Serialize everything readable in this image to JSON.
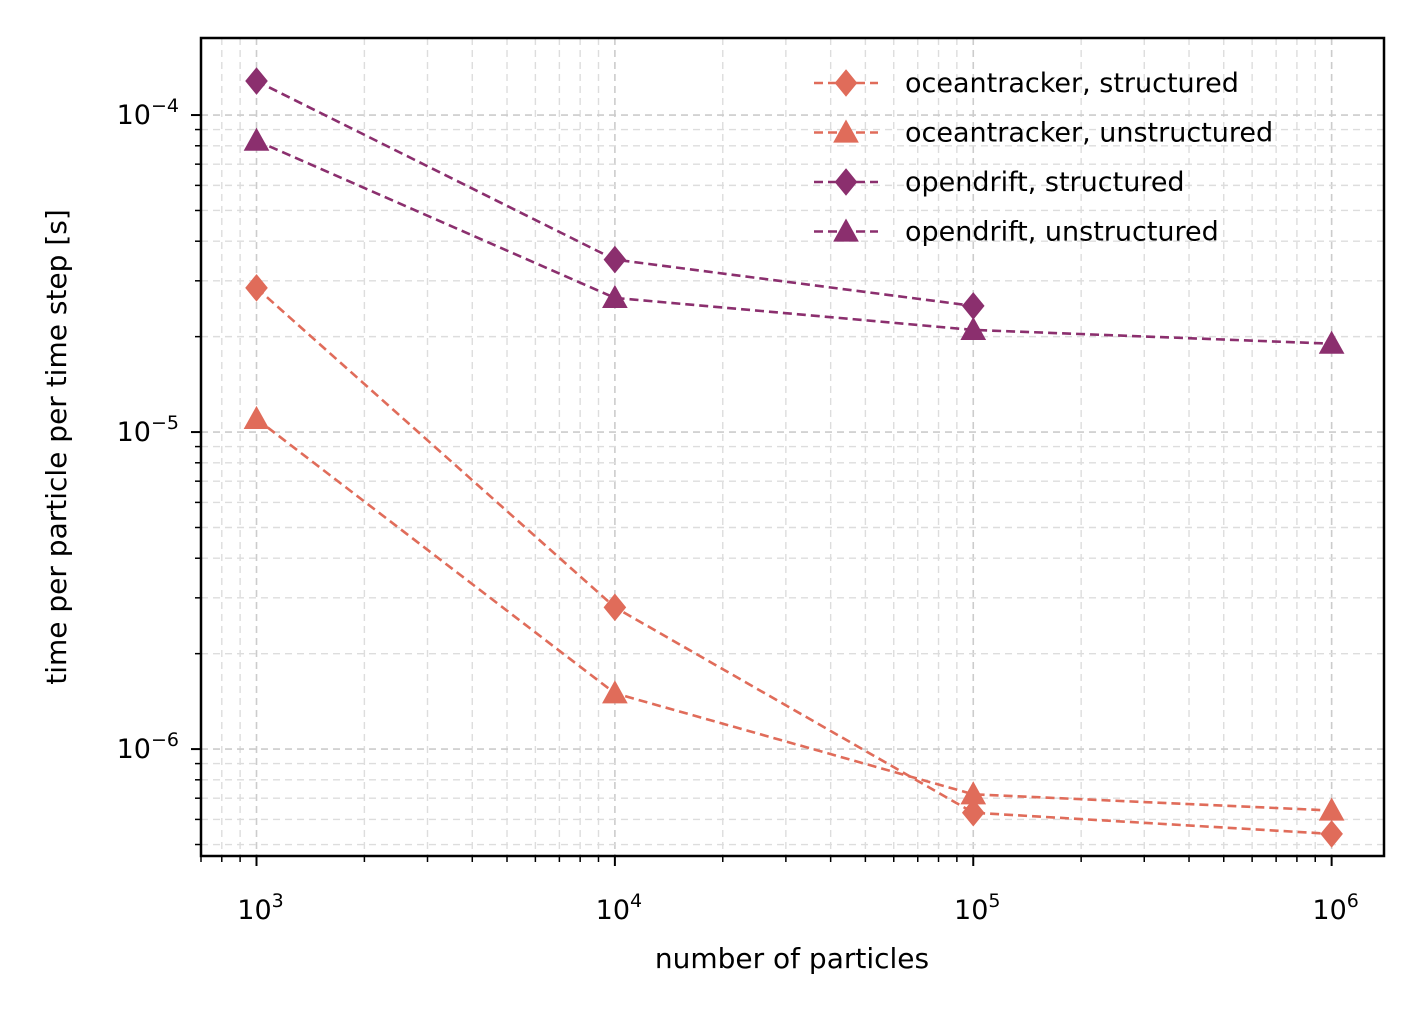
{
  "chart_data": {
    "type": "line",
    "title": "",
    "xlabel": "number of particles",
    "ylabel": "time per particle per time step [s]",
    "xscale": "log",
    "yscale": "log",
    "xlim": [
      700,
      1400000
    ],
    "ylim": [
      4.6e-07,
      0.000175
    ],
    "grid": true,
    "grid_style": "dashed, major and minor",
    "legend_position": "top-right",
    "x_ticks": [
      {
        "base": "10",
        "exp": "3",
        "value": 1000
      },
      {
        "base": "10",
        "exp": "4",
        "value": 10000
      },
      {
        "base": "10",
        "exp": "5",
        "value": 100000
      },
      {
        "base": "10",
        "exp": "6",
        "value": 1000000
      }
    ],
    "y_ticks": [
      {
        "base": "10",
        "exp": "−6",
        "value": 1e-06
      },
      {
        "base": "10",
        "exp": "−5",
        "value": 1e-05
      },
      {
        "base": "10",
        "exp": "−4",
        "value": 0.0001
      }
    ],
    "series": [
      {
        "name": "oceantracker, structured",
        "color": "#e06c5a",
        "marker": "diamond",
        "x": [
          1000,
          10000,
          100000,
          1000000
        ],
        "y": [
          2.85e-05,
          2.8e-06,
          6.3e-07,
          5.4e-07
        ]
      },
      {
        "name": "oceantracker, unstructured",
        "color": "#e06c5a",
        "marker": "triangle",
        "x": [
          1000,
          10000,
          100000,
          1000000
        ],
        "y": [
          1.1e-05,
          1.5e-06,
          7.2e-07,
          6.4e-07
        ]
      },
      {
        "name": "opendrift, structured",
        "color": "#8b2f6e",
        "marker": "diamond",
        "x": [
          1000,
          10000,
          100000
        ],
        "y": [
          0.000128,
          3.5e-05,
          2.5e-05
        ]
      },
      {
        "name": "opendrift, unstructured",
        "color": "#8b2f6e",
        "marker": "triangle",
        "x": [
          1000,
          10000,
          100000,
          1000000
        ],
        "y": [
          8.3e-05,
          2.65e-05,
          2.1e-05,
          1.9e-05
        ]
      }
    ]
  }
}
